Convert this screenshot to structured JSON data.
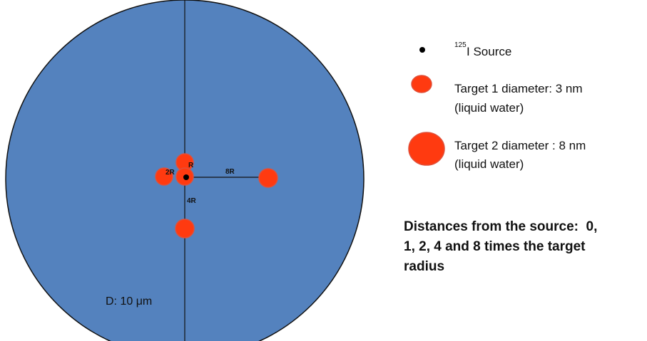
{
  "diagram": {
    "labels": {
      "r1": "R",
      "r2": "2R",
      "r8": "8R",
      "r4": "4R",
      "diameter": "D: 10 μm"
    },
    "legend": {
      "source_superscript": "125",
      "source_label": "I Source",
      "target1_line1": "Target 1 diameter: 3 nm",
      "target1_line2": "(liquid water)",
      "target2_line1": "Target 2 diameter : 8 nm",
      "target2_line2": "(liquid water)"
    },
    "note": [
      "Distances from the source:  0,",
      "1, 2, 4 and 8 times the target",
      "radius"
    ]
  }
}
